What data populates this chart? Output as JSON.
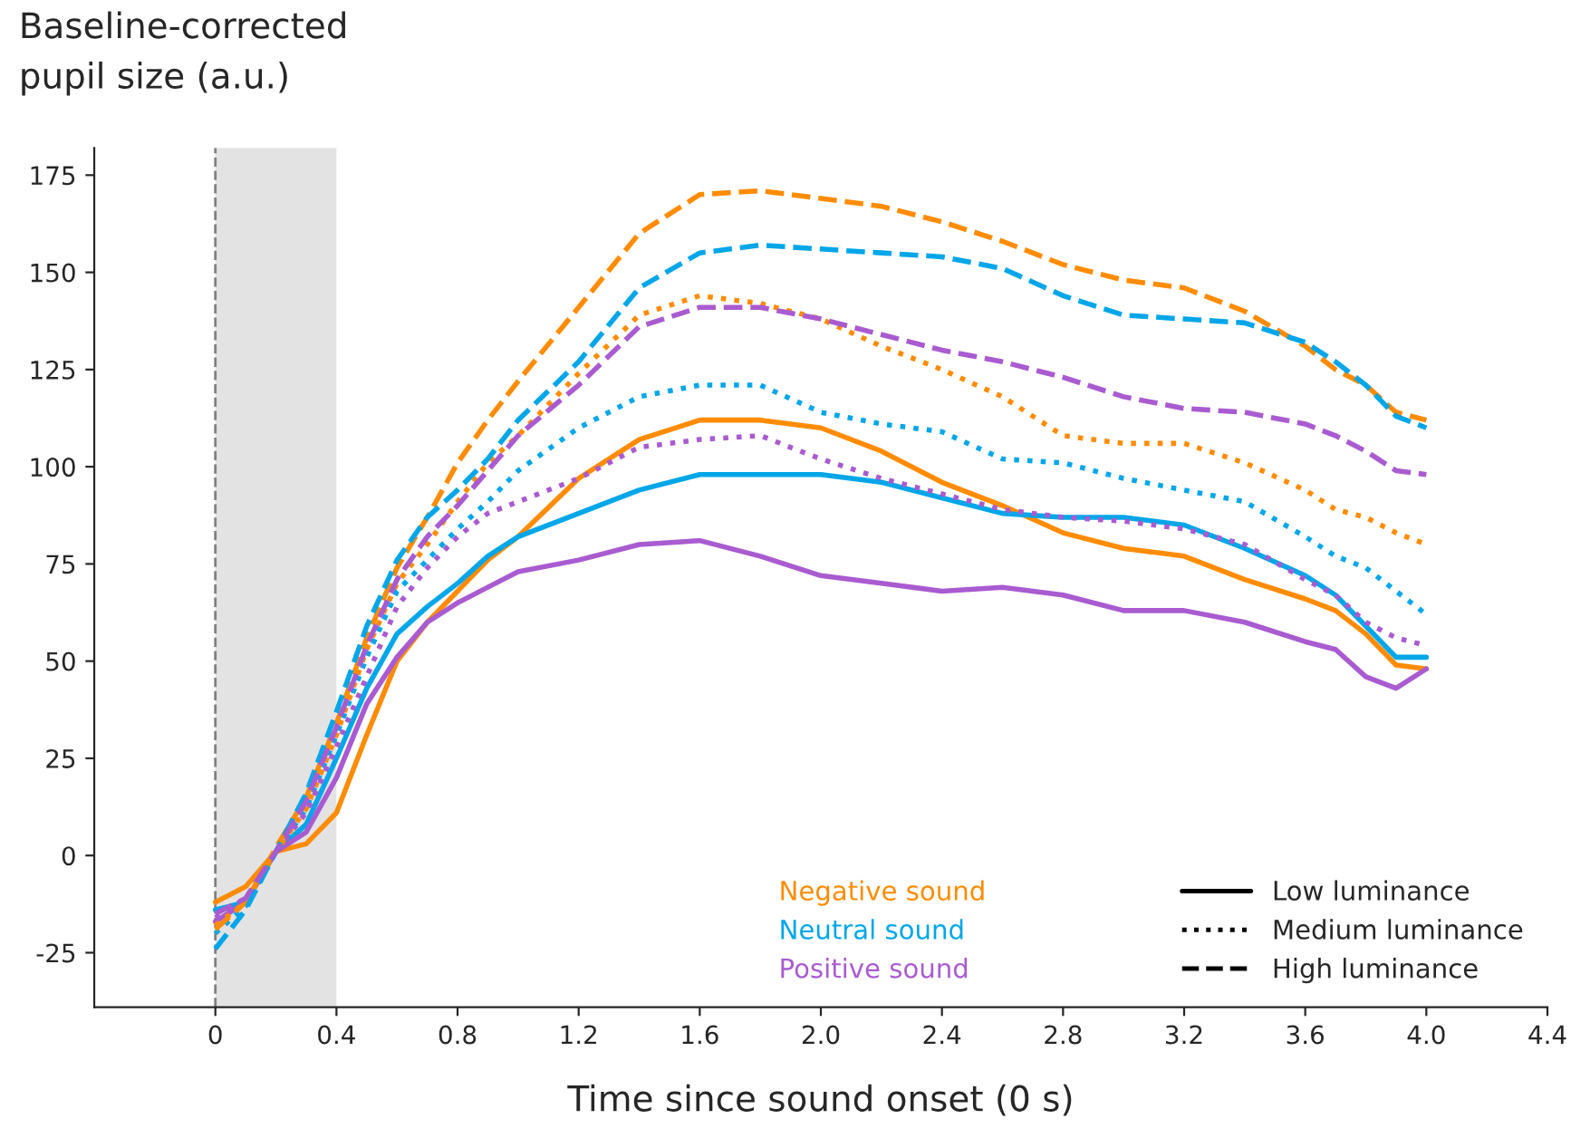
{
  "chart_data": {
    "type": "line",
    "xlabel": "Time since sound onset (0 s)",
    "ylabel": "Baseline-corrected\npupil size (a.u.)",
    "x": [
      0,
      0.1,
      0.2,
      0.3,
      0.4,
      0.5,
      0.6,
      0.7,
      0.8,
      0.9,
      1.0,
      1.2,
      1.4,
      1.6,
      1.8,
      2.0,
      2.2,
      2.4,
      2.6,
      2.8,
      3.0,
      3.2,
      3.4,
      3.6,
      3.7,
      3.8,
      3.9,
      4.0
    ],
    "series": [
      {
        "color": "#ff8c00",
        "line_style": "solid",
        "values": [
          -12,
          -8,
          1,
          3,
          11,
          31,
          50,
          60,
          68,
          76,
          82,
          97,
          107,
          112,
          112,
          110,
          104,
          96,
          90,
          83,
          79,
          77,
          71,
          66,
          63,
          57,
          49,
          48
        ]
      },
      {
        "color": "#00a6e8",
        "line_style": "solid",
        "values": [
          -14,
          -12,
          1,
          8,
          25,
          43,
          57,
          64,
          70,
          77,
          82,
          88,
          94,
          98,
          98,
          98,
          96,
          92,
          88,
          87,
          87,
          85,
          79,
          72,
          67,
          59,
          51,
          51
        ]
      },
      {
        "color": "#a95bd0",
        "line_style": "solid",
        "values": [
          -17,
          -12,
          1,
          6,
          20,
          39,
          51,
          60,
          65,
          69,
          73,
          76,
          80,
          81,
          77,
          72,
          70,
          68,
          69,
          67,
          63,
          63,
          60,
          55,
          53,
          46,
          43,
          48
        ]
      },
      {
        "color": "#ff8c00",
        "line_style": "dotted",
        "values": [
          -18,
          -12,
          1,
          12,
          31,
          53,
          70,
          80,
          91,
          101,
          108,
          124,
          139,
          144,
          142,
          138,
          131,
          125,
          118,
          108,
          106,
          106,
          101,
          94,
          89,
          87,
          83,
          80
        ]
      },
      {
        "color": "#00a6e8",
        "line_style": "dotted",
        "values": [
          -20,
          -13,
          1,
          12,
          31,
          51,
          68,
          76,
          84,
          91,
          99,
          110,
          118,
          121,
          121,
          114,
          111,
          109,
          102,
          101,
          97,
          94,
          91,
          82,
          77,
          74,
          68,
          62
        ]
      },
      {
        "color": "#a95bd0",
        "line_style": "dotted",
        "values": [
          -16,
          -11,
          1,
          11,
          28,
          46,
          64,
          74,
          82,
          88,
          91,
          97,
          105,
          107,
          108,
          102,
          97,
          93,
          89,
          87,
          86,
          84,
          80,
          71,
          67,
          60,
          56,
          54
        ]
      },
      {
        "color": "#ff8c00",
        "line_style": "dashed",
        "values": [
          -19,
          -12,
          2,
          15,
          34,
          56,
          74,
          87,
          101,
          112,
          122,
          141,
          160,
          170,
          171,
          169,
          167,
          163,
          158,
          152,
          148,
          146,
          140,
          131,
          125,
          121,
          114,
          112
        ]
      },
      {
        "color": "#00a6e8",
        "line_style": "dashed",
        "values": [
          -24,
          -14,
          1,
          16,
          37,
          59,
          76,
          87,
          94,
          102,
          112,
          127,
          146,
          155,
          157,
          156,
          155,
          154,
          151,
          144,
          139,
          138,
          137,
          132,
          127,
          121,
          113,
          110
        ]
      },
      {
        "color": "#a95bd0",
        "line_style": "dashed",
        "values": [
          -15,
          -11,
          1,
          14,
          33,
          54,
          71,
          82,
          90,
          99,
          108,
          121,
          136,
          141,
          141,
          138,
          134,
          130,
          127,
          123,
          118,
          115,
          114,
          111,
          108,
          104,
          99,
          98
        ]
      }
    ],
    "xlim": [
      -0.4,
      4.4
    ],
    "xticks": [
      0,
      0.4,
      0.8,
      1.2,
      1.6,
      {
        "value": 2,
        "label": "2.0"
      },
      2.4,
      2.8,
      3.2,
      3.6,
      {
        "value": 4,
        "label": "4.0"
      },
      4.4
    ],
    "ylim": [
      -39,
      182
    ],
    "yticks": [
      -25,
      0,
      25,
      50,
      75,
      100,
      125,
      150,
      175
    ],
    "ref_lines": [
      {
        "axis": "x",
        "value": 0,
        "color": "#808080",
        "line_style": "dashed"
      }
    ],
    "bands": [
      {
        "axis": "x",
        "from": 0,
        "to": 0.4,
        "color": "#e3e3e3"
      }
    ],
    "annotations": [
      "Negative sound",
      "Neutral sound",
      "Positive sound",
      "Low luminance",
      "Medium luminance",
      "High luminance"
    ],
    "grid": false
  }
}
